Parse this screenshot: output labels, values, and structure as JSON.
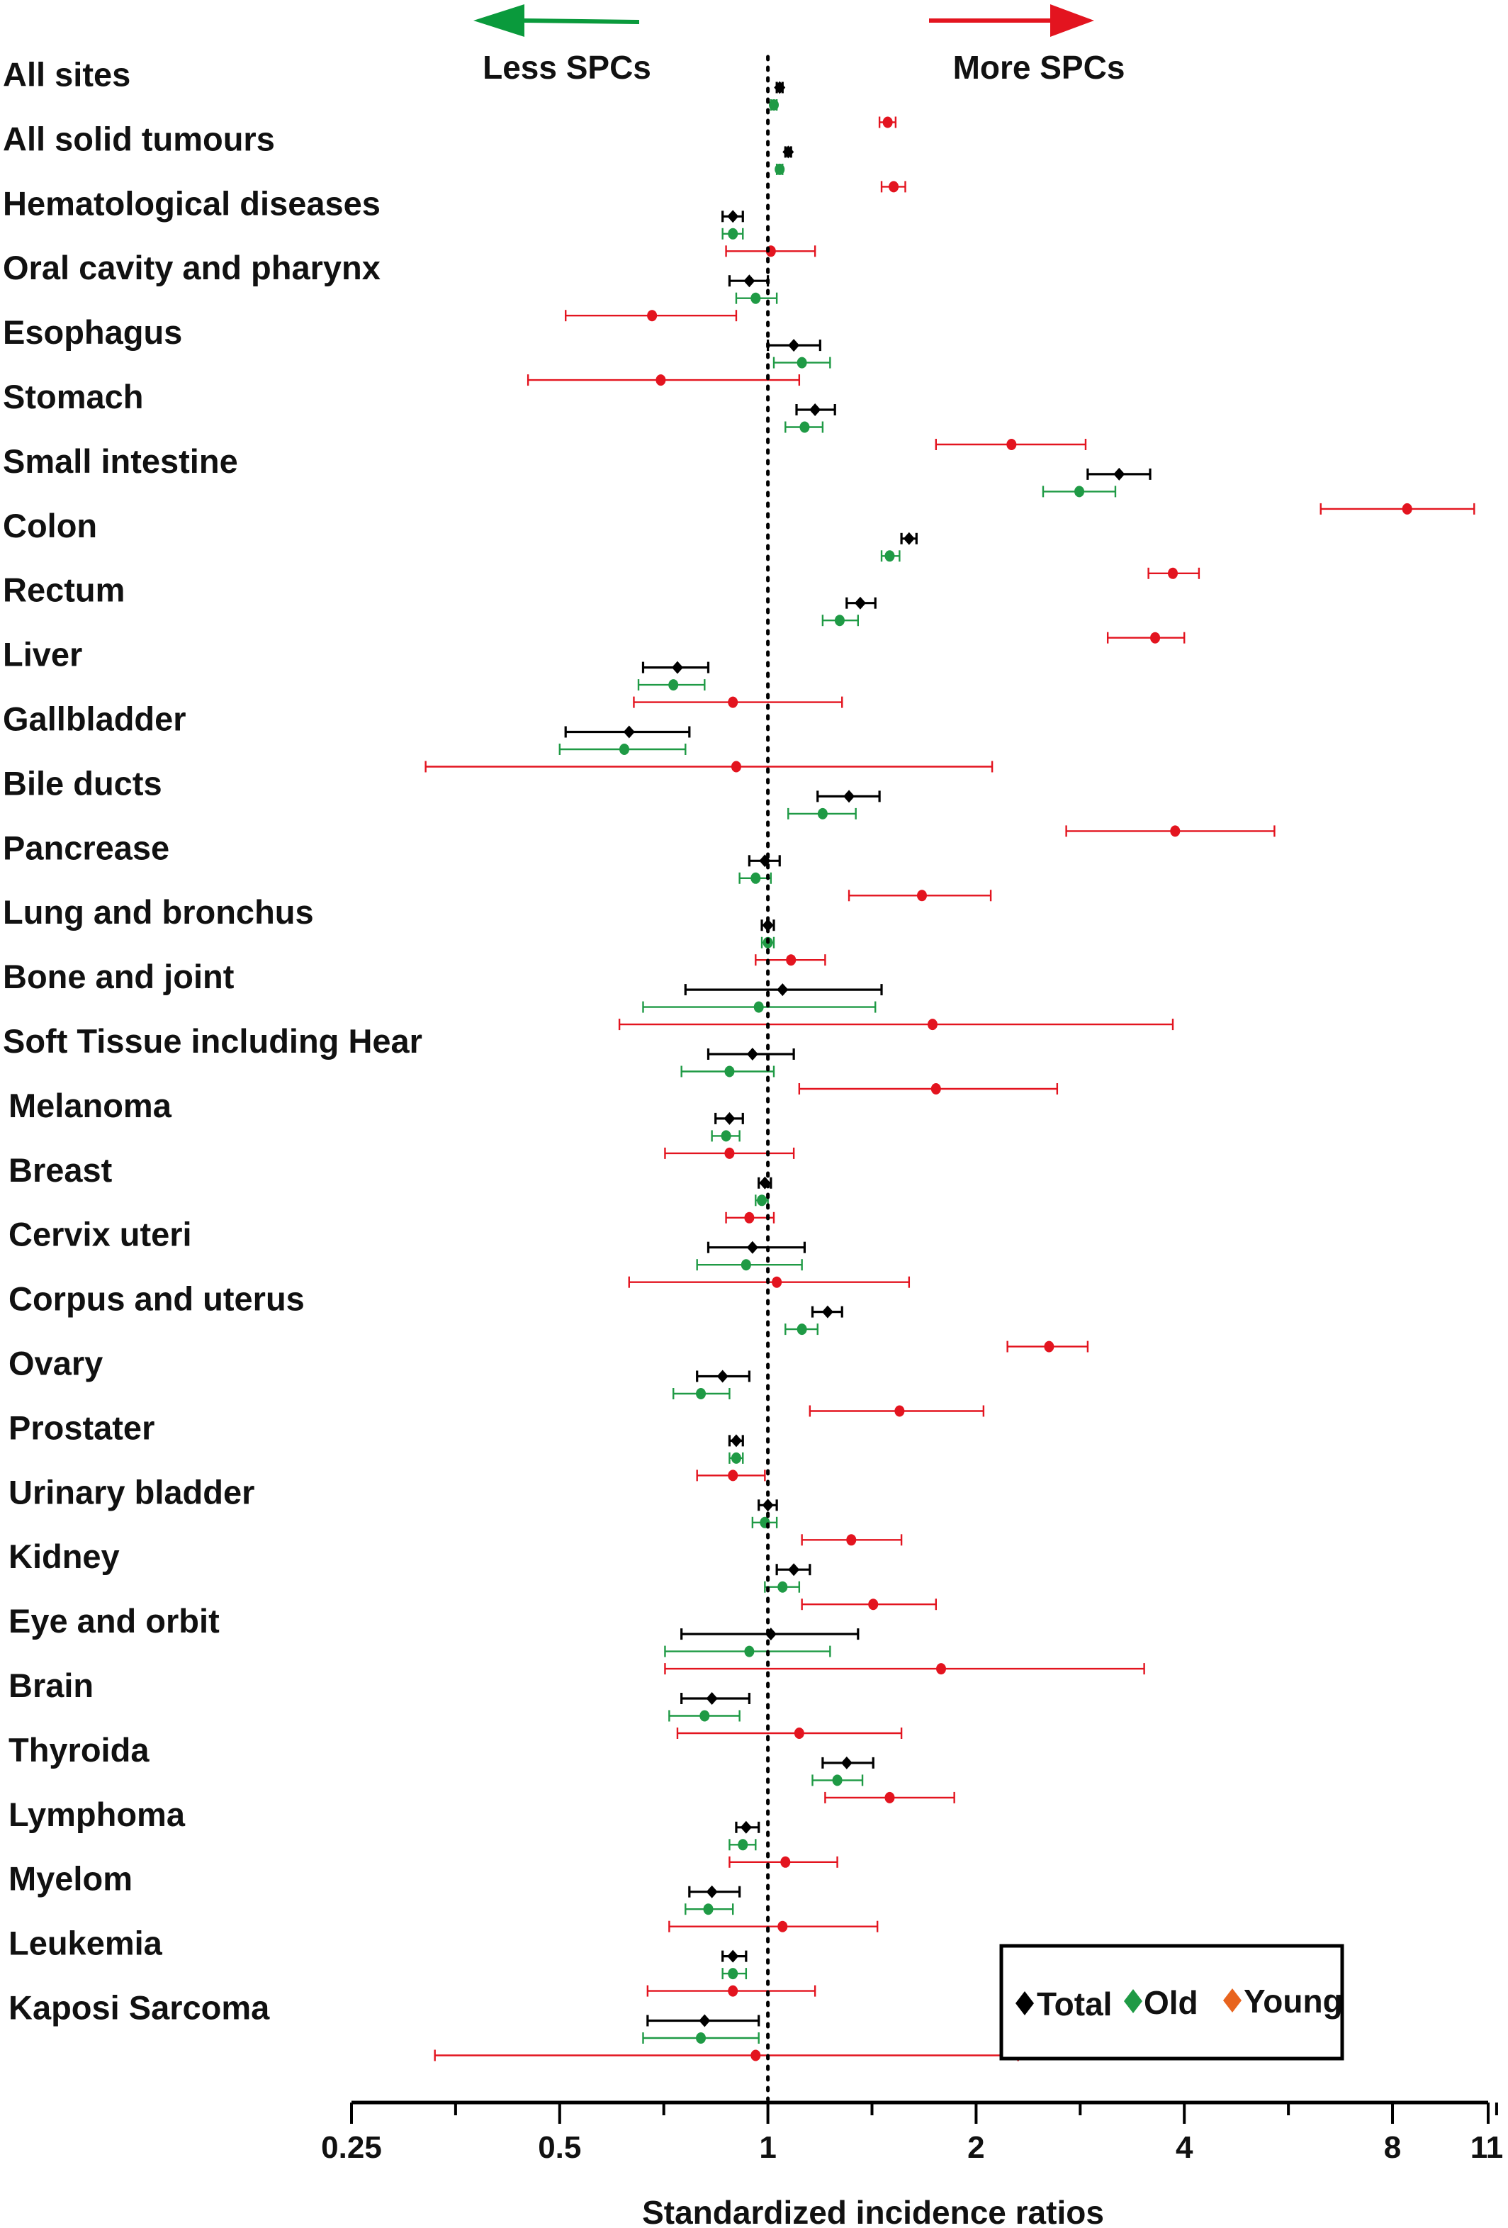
{
  "chart_data": {
    "type": "forest",
    "xlabel": "Standardized incidence ratios",
    "x_scale": "log2",
    "xlim": [
      0.25,
      11
    ],
    "x_ticks": [
      0.25,
      0.5,
      1,
      2,
      4,
      8,
      11
    ],
    "x_tick_labels": [
      "0.25",
      "0.5",
      "1",
      "2",
      "4",
      "8",
      "11"
    ],
    "reference_line": 1,
    "arrows": [
      {
        "label": "Less SPCs",
        "direction": "left",
        "color": "#0a9a3c"
      },
      {
        "label": "More SPCs",
        "direction": "right",
        "color": "#e3141f"
      }
    ],
    "legend": {
      "position": "bottom-right",
      "entries": [
        {
          "name": "Total",
          "color": "#000000"
        },
        {
          "name": "Old",
          "color": "#1f9a45"
        },
        {
          "name": "Young",
          "color": "#e8641e"
        }
      ]
    },
    "series_colors": {
      "total": "#000000",
      "old": "#1f9a45",
      "young": "#e3141f"
    },
    "categories": [
      {
        "label": "All sites",
        "total": {
          "est": 1.04,
          "lo": 1.03,
          "hi": 1.05
        },
        "old": {
          "est": 1.02,
          "lo": 1.01,
          "hi": 1.03
        },
        "young": {
          "est": 1.49,
          "lo": 1.45,
          "hi": 1.53
        }
      },
      {
        "label": "All solid tumours",
        "total": {
          "est": 1.07,
          "lo": 1.06,
          "hi": 1.08
        },
        "old": {
          "est": 1.04,
          "lo": 1.03,
          "hi": 1.05
        },
        "young": {
          "est": 1.52,
          "lo": 1.46,
          "hi": 1.58
        }
      },
      {
        "label": "Hematological diseases",
        "total": {
          "est": 0.89,
          "lo": 0.86,
          "hi": 0.92
        },
        "old": {
          "est": 0.89,
          "lo": 0.86,
          "hi": 0.92
        },
        "young": {
          "est": 1.01,
          "lo": 0.87,
          "hi": 1.17
        }
      },
      {
        "label": "Oral cavity and pharynx",
        "total": {
          "est": 0.94,
          "lo": 0.88,
          "hi": 1.0
        },
        "old": {
          "est": 0.96,
          "lo": 0.9,
          "hi": 1.03
        },
        "young": {
          "est": 0.68,
          "lo": 0.51,
          "hi": 0.9
        }
      },
      {
        "label": "Esophagus",
        "total": {
          "est": 1.09,
          "lo": 1.0,
          "hi": 1.19
        },
        "old": {
          "est": 1.12,
          "lo": 1.02,
          "hi": 1.23
        },
        "young": {
          "est": 0.7,
          "lo": 0.45,
          "hi": 1.11
        }
      },
      {
        "label": "Stomach",
        "total": {
          "est": 1.17,
          "lo": 1.1,
          "hi": 1.25
        },
        "old": {
          "est": 1.13,
          "lo": 1.06,
          "hi": 1.2
        },
        "young": {
          "est": 2.25,
          "lo": 1.75,
          "hi": 2.88
        }
      },
      {
        "label": "Small intestine",
        "total": {
          "est": 3.22,
          "lo": 2.9,
          "hi": 3.57
        },
        "old": {
          "est": 2.82,
          "lo": 2.5,
          "hi": 3.18
        },
        "young": {
          "est": 8.4,
          "lo": 6.3,
          "hi": 10.5
        }
      },
      {
        "label": "Colon",
        "total": {
          "est": 1.6,
          "lo": 1.56,
          "hi": 1.64
        },
        "old": {
          "est": 1.5,
          "lo": 1.46,
          "hi": 1.55
        },
        "young": {
          "est": 3.85,
          "lo": 3.55,
          "hi": 4.2
        }
      },
      {
        "label": "Rectum",
        "total": {
          "est": 1.36,
          "lo": 1.3,
          "hi": 1.43
        },
        "old": {
          "est": 1.27,
          "lo": 1.2,
          "hi": 1.35
        },
        "young": {
          "est": 3.63,
          "lo": 3.1,
          "hi": 4.0
        }
      },
      {
        "label": "Liver",
        "total": {
          "est": 0.74,
          "lo": 0.66,
          "hi": 0.82
        },
        "old": {
          "est": 0.73,
          "lo": 0.65,
          "hi": 0.81
        },
        "young": {
          "est": 0.89,
          "lo": 0.64,
          "hi": 1.28
        }
      },
      {
        "label": "Gallbladder",
        "total": {
          "est": 0.63,
          "lo": 0.51,
          "hi": 0.77
        },
        "old": {
          "est": 0.62,
          "lo": 0.5,
          "hi": 0.76
        },
        "young": {
          "est": 0.9,
          "lo": 0.32,
          "hi": 2.11
        }
      },
      {
        "label": "Bile ducts",
        "total": {
          "est": 1.31,
          "lo": 1.18,
          "hi": 1.45
        },
        "old": {
          "est": 1.2,
          "lo": 1.07,
          "hi": 1.34
        },
        "young": {
          "est": 3.88,
          "lo": 2.7,
          "hi": 5.4
        }
      },
      {
        "label": "Pancrease",
        "total": {
          "est": 0.99,
          "lo": 0.94,
          "hi": 1.04
        },
        "old": {
          "est": 0.96,
          "lo": 0.91,
          "hi": 1.01
        },
        "young": {
          "est": 1.67,
          "lo": 1.31,
          "hi": 2.1
        }
      },
      {
        "label": "Lung and bronchus",
        "total": {
          "est": 1.0,
          "lo": 0.98,
          "hi": 1.02
        },
        "old": {
          "est": 1.0,
          "lo": 0.98,
          "hi": 1.02
        },
        "young": {
          "est": 1.08,
          "lo": 0.96,
          "hi": 1.21
        }
      },
      {
        "label": "Bone and joint",
        "total": {
          "est": 1.05,
          "lo": 0.76,
          "hi": 1.46
        },
        "old": {
          "est": 0.97,
          "lo": 0.66,
          "hi": 1.43
        },
        "young": {
          "est": 1.73,
          "lo": 0.61,
          "hi": 3.85
        }
      },
      {
        "label": "Soft Tissue including Hear",
        "total": {
          "est": 0.95,
          "lo": 0.82,
          "hi": 1.09
        },
        "old": {
          "est": 0.88,
          "lo": 0.75,
          "hi": 1.02
        },
        "young": {
          "est": 1.75,
          "lo": 1.11,
          "hi": 2.62
        }
      },
      {
        "label": "Melanoma",
        "total": {
          "est": 0.88,
          "lo": 0.84,
          "hi": 0.92
        },
        "old": {
          "est": 0.87,
          "lo": 0.83,
          "hi": 0.91
        },
        "young": {
          "est": 0.88,
          "lo": 0.71,
          "hi": 1.09
        }
      },
      {
        "label": "Breast",
        "total": {
          "est": 0.99,
          "lo": 0.97,
          "hi": 1.01
        },
        "old": {
          "est": 0.98,
          "lo": 0.96,
          "hi": 1.0
        },
        "young": {
          "est": 0.94,
          "lo": 0.87,
          "hi": 1.02
        }
      },
      {
        "label": "Cervix uteri",
        "total": {
          "est": 0.95,
          "lo": 0.82,
          "hi": 1.13
        },
        "old": {
          "est": 0.93,
          "lo": 0.79,
          "hi": 1.12
        },
        "young": {
          "est": 1.03,
          "lo": 0.63,
          "hi": 1.6
        }
      },
      {
        "label": "Corpus and uterus",
        "total": {
          "est": 1.22,
          "lo": 1.16,
          "hi": 1.28
        },
        "old": {
          "est": 1.12,
          "lo": 1.06,
          "hi": 1.18
        },
        "young": {
          "est": 2.55,
          "lo": 2.22,
          "hi": 2.9
        }
      },
      {
        "label": "Ovary",
        "total": {
          "est": 0.86,
          "lo": 0.79,
          "hi": 0.94
        },
        "old": {
          "est": 0.8,
          "lo": 0.73,
          "hi": 0.88
        },
        "young": {
          "est": 1.55,
          "lo": 1.15,
          "hi": 2.05
        }
      },
      {
        "label": "Prostater",
        "total": {
          "est": 0.9,
          "lo": 0.88,
          "hi": 0.92
        },
        "old": {
          "est": 0.9,
          "lo": 0.88,
          "hi": 0.92
        },
        "young": {
          "est": 0.89,
          "lo": 0.79,
          "hi": 0.99
        }
      },
      {
        "label": "Urinary bladder",
        "total": {
          "est": 1.0,
          "lo": 0.97,
          "hi": 1.03
        },
        "old": {
          "est": 0.99,
          "lo": 0.95,
          "hi": 1.03
        },
        "young": {
          "est": 1.32,
          "lo": 1.12,
          "hi": 1.56
        }
      },
      {
        "label": "Kidney",
        "total": {
          "est": 1.09,
          "lo": 1.03,
          "hi": 1.15
        },
        "old": {
          "est": 1.05,
          "lo": 0.99,
          "hi": 1.11
        },
        "young": {
          "est": 1.42,
          "lo": 1.12,
          "hi": 1.75
        }
      },
      {
        "label": "Eye and orbit",
        "total": {
          "est": 1.01,
          "lo": 0.75,
          "hi": 1.35
        },
        "old": {
          "est": 0.94,
          "lo": 0.71,
          "hi": 1.23
        },
        "young": {
          "est": 1.78,
          "lo": 0.71,
          "hi": 3.5
        }
      },
      {
        "label": "Brain",
        "total": {
          "est": 0.83,
          "lo": 0.75,
          "hi": 0.94
        },
        "old": {
          "est": 0.81,
          "lo": 0.72,
          "hi": 0.91
        },
        "young": {
          "est": 1.11,
          "lo": 0.74,
          "hi": 1.56
        }
      },
      {
        "label": "Thyroida",
        "total": {
          "est": 1.3,
          "lo": 1.2,
          "hi": 1.42
        },
        "old": {
          "est": 1.26,
          "lo": 1.16,
          "hi": 1.37
        },
        "young": {
          "est": 1.5,
          "lo": 1.21,
          "hi": 1.86
        }
      },
      {
        "label": "Lymphoma",
        "total": {
          "est": 0.93,
          "lo": 0.9,
          "hi": 0.97
        },
        "old": {
          "est": 0.92,
          "lo": 0.88,
          "hi": 0.96
        },
        "young": {
          "est": 1.06,
          "lo": 0.88,
          "hi": 1.26
        }
      },
      {
        "label": "Myelom",
        "total": {
          "est": 0.83,
          "lo": 0.77,
          "hi": 0.91
        },
        "old": {
          "est": 0.82,
          "lo": 0.76,
          "hi": 0.89
        },
        "young": {
          "est": 1.05,
          "lo": 0.72,
          "hi": 1.44
        }
      },
      {
        "label": "Leukemia",
        "total": {
          "est": 0.89,
          "lo": 0.86,
          "hi": 0.93
        },
        "old": {
          "est": 0.89,
          "lo": 0.86,
          "hi": 0.93
        },
        "young": {
          "est": 0.89,
          "lo": 0.67,
          "hi": 1.17
        }
      },
      {
        "label": "Kaposi Sarcoma",
        "total": {
          "est": 0.81,
          "lo": 0.67,
          "hi": 0.97
        },
        "old": {
          "est": 0.8,
          "lo": 0.66,
          "hi": 0.97
        },
        "young": {
          "est": 0.96,
          "lo": 0.33,
          "hi": 2.3
        }
      }
    ]
  }
}
